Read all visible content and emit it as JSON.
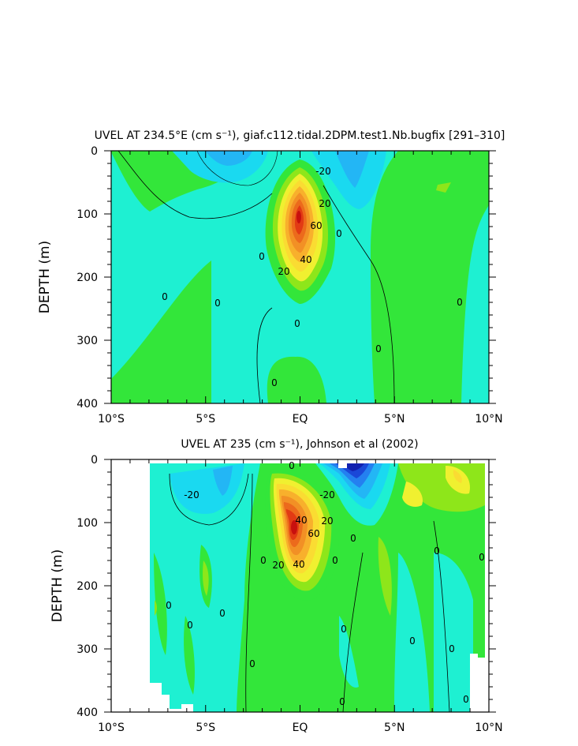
{
  "chart_data": [
    {
      "type": "heatmap",
      "subtype": "filled-contour depth section",
      "title": "UVEL AT 234.5°E (cm s⁻¹), giaf.c112.tidal.2DPM.test1.Nb.bugfix [291–310]",
      "ylabel": "DEPTH (m)",
      "xlabel": "",
      "xlim": [
        -10,
        10
      ],
      "ylim": [
        400,
        0
      ],
      "x_ticks": [
        "10°S",
        "5°S",
        "EQ",
        "5°N",
        "10°N"
      ],
      "y_ticks": [
        "0",
        "100",
        "200",
        "300",
        "400"
      ],
      "contour_interval": 10,
      "contour_labels": [
        "-20",
        "20",
        "60",
        "40",
        "20",
        "0",
        "0",
        "0",
        "0",
        "0",
        "0",
        "0",
        "0"
      ],
      "features": [
        {
          "kind": "core",
          "lat": -0.1,
          "depth": 100,
          "max_value": 100
        },
        {
          "kind": "westward-surface",
          "lat": 3.2,
          "depth": 20,
          "min_value": -30
        },
        {
          "kind": "westward-surface",
          "lat": -3.4,
          "depth": 15,
          "min_value": -20
        }
      ]
    },
    {
      "type": "heatmap",
      "subtype": "filled-contour depth section",
      "title": "UVEL AT 235 (cm s⁻¹), Johnson et al (2002)",
      "ylabel": "DEPTH (m)",
      "xlabel": "",
      "xlim": [
        -10,
        10
      ],
      "ylim": [
        400,
        0
      ],
      "x_ticks": [
        "10°S",
        "5°S",
        "EQ",
        "5°N",
        "10°N"
      ],
      "y_ticks": [
        "0",
        "100",
        "200",
        "300",
        "400"
      ],
      "contour_interval": 10,
      "contour_labels": [
        "-20",
        "0",
        "-20",
        "40",
        "20",
        "20",
        "40",
        "60",
        "0",
        "0",
        "0",
        "0",
        "0",
        "0",
        "0",
        "0",
        "0",
        "0",
        "0",
        "0",
        "0",
        "0"
      ],
      "features": [
        {
          "kind": "core",
          "lat": -0.3,
          "depth": 85,
          "max_value": 110
        },
        {
          "kind": "westward-surface",
          "lat": 2.8,
          "depth": 10,
          "min_value": -60
        },
        {
          "kind": "eastward-surface",
          "lat": 8.5,
          "depth": 30,
          "max_value": 30
        }
      ]
    }
  ]
}
